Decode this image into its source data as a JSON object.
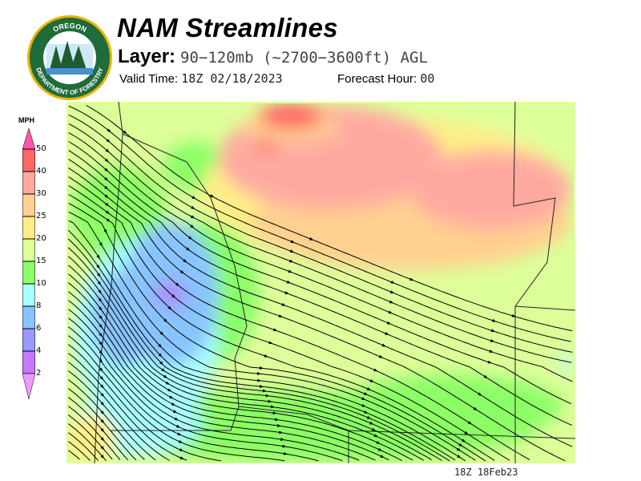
{
  "header": {
    "title": "NAM Streamlines",
    "layer_label": "Layer:",
    "layer_value": "90−120mb (~2700−3600ft) AGL",
    "valid_label": "Valid Time:",
    "valid_value": "18Z 02/18/2023",
    "forecast_label": "Forecast Hour:",
    "forecast_value": "00"
  },
  "logo": {
    "text_top": "OREGON",
    "text_bottom": "DEPARTMENT OF FORESTRY"
  },
  "legend": {
    "unit": "MPH",
    "ticks": [
      "50",
      "40",
      "30",
      "25",
      "20",
      "15",
      "10",
      "8",
      "6",
      "4",
      "2"
    ],
    "colors": [
      "#ff55aa",
      "#ff6666",
      "#ffaaa0",
      "#ffd090",
      "#ffee88",
      "#ddff99",
      "#8cff66",
      "#aaffff",
      "#88c4ff",
      "#9999ff",
      "#c877ff",
      "#ee99ff"
    ]
  },
  "map": {
    "footer_stamp": "18Z 18Feb23"
  }
}
